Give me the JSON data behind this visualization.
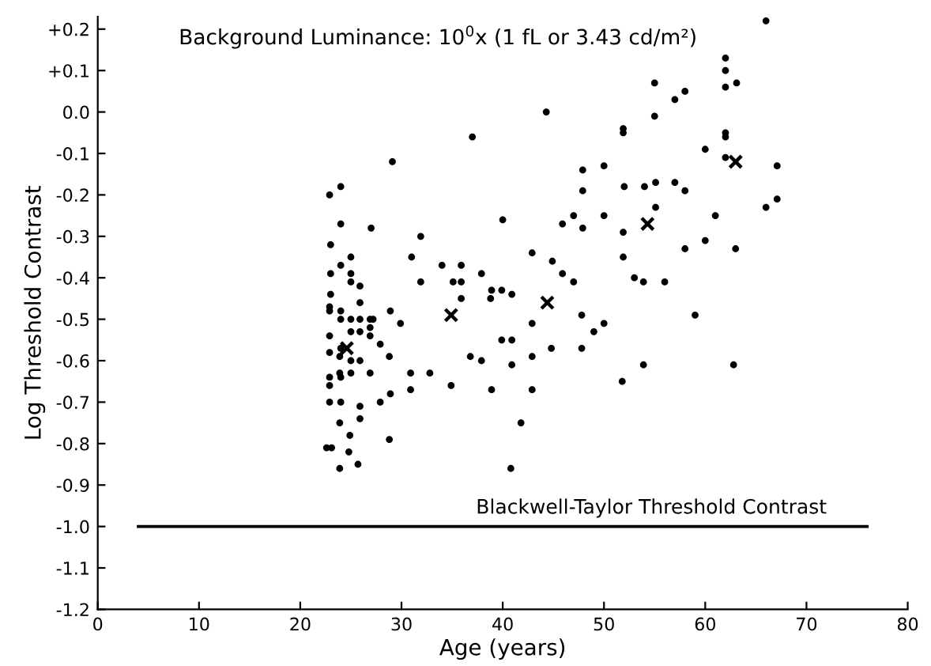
{
  "chart_data": {
    "type": "scatter",
    "title": "Background Luminance: 10$^{0}$x (1 fL or 3.43 cd/m²)",
    "xlabel": "Age (years)",
    "ylabel": "Log Threshold Contrast",
    "xlim": [
      0,
      80
    ],
    "xticks": [
      0,
      10,
      20,
      30,
      40,
      50,
      60,
      70,
      80
    ],
    "ylim": [
      -1.2,
      0.23
    ],
    "yticks": [
      {
        "value": 0.2,
        "label": "+0.2"
      },
      {
        "value": 0.1,
        "label": "+0.1"
      },
      {
        "value": 0.0,
        "label": "0.0"
      },
      {
        "value": -0.1,
        "label": "-0.1"
      },
      {
        "value": -0.2,
        "label": "-0.2"
      },
      {
        "value": -0.3,
        "label": "-0.3"
      },
      {
        "value": -0.4,
        "label": "-0.4"
      },
      {
        "value": -0.5,
        "label": "-0.5"
      },
      {
        "value": -0.6,
        "label": "-0.6"
      },
      {
        "value": -0.7,
        "label": "-0.7"
      },
      {
        "value": -0.8,
        "label": "-0.8"
      },
      {
        "value": -0.9,
        "label": "-0.9"
      },
      {
        "value": -1.0,
        "label": "-1.0"
      },
      {
        "value": -1.1,
        "label": "-1.1"
      },
      {
        "value": -1.2,
        "label": "-1.2"
      }
    ],
    "grid": false,
    "legend": false,
    "ref_lines": [
      {
        "axis": "y",
        "value": -1.0,
        "label": "Blackwell-Taylor Threshold Contrast",
        "color": "#000000",
        "line_style": "solid"
      }
    ],
    "series": [
      {
        "color": "#000000",
        "marker": "circle",
        "x": [
          37.0,
          29.1,
          24.0,
          22.9,
          24.0,
          27.0,
          31.9,
          23.0,
          31.0,
          25.0,
          24.0,
          34.0,
          35.9,
          23.0,
          25.0,
          37.9,
          25.0,
          31.9,
          35.1,
          35.9,
          25.9,
          23.0,
          38.9,
          38.8,
          35.9,
          22.9,
          22.9,
          24.0,
          25.9,
          28.9,
          25.0,
          24.0,
          25.9,
          26.9,
          27.2,
          29.9,
          26.9,
          22.9,
          25.0,
          25.9,
          26.9,
          27.9,
          22.9,
          24.0,
          25.0,
          23.9,
          25.9,
          28.8,
          36.8,
          37.9,
          22.9,
          22.9,
          23.9,
          24.0,
          25.0,
          26.9,
          30.9,
          32.8,
          30.9,
          34.9,
          38.9,
          28.9,
          22.9,
          24.0,
          25.9,
          27.9,
          23.9,
          25.9,
          24.9,
          28.8,
          22.6,
          23.1,
          24.8,
          23.9,
          25.7,
          39.9,
          40.9,
          40.0,
          42.9,
          44.9,
          45.9,
          47.0,
          39.9,
          40.9,
          42.9,
          40.9,
          42.9,
          44.8,
          47.8,
          49.0,
          50.0,
          47.8,
          42.9,
          41.8,
          40.8,
          47.9,
          50.0,
          47.9,
          47.0,
          45.9,
          47.9,
          50.0,
          51.9,
          51.9,
          52.0,
          54.0,
          55.1,
          55.1,
          51.9,
          51.9,
          53.0,
          53.9,
          51.8,
          53.9,
          44.3,
          66.0,
          62.0,
          62.0,
          55.0,
          62.0,
          63.1,
          57.0,
          58.0,
          55.0,
          62.0,
          62.0,
          60.0,
          62.0,
          67.1,
          57.0,
          58.0,
          66.0,
          67.1,
          61.0,
          58.0,
          60.0,
          63.0,
          56.0,
          59.0,
          62.8
        ],
        "values": [
          -0.06,
          -0.12,
          -0.18,
          -0.2,
          -0.27,
          -0.28,
          -0.3,
          -0.32,
          -0.35,
          -0.35,
          -0.37,
          -0.37,
          -0.37,
          -0.39,
          -0.39,
          -0.39,
          -0.41,
          -0.41,
          -0.41,
          -0.41,
          -0.42,
          -0.44,
          -0.43,
          -0.45,
          -0.45,
          -0.47,
          -0.48,
          -0.48,
          -0.46,
          -0.48,
          -0.5,
          -0.5,
          -0.5,
          -0.5,
          -0.5,
          -0.51,
          -0.52,
          -0.54,
          -0.53,
          -0.53,
          -0.54,
          -0.56,
          -0.58,
          -0.57,
          -0.6,
          -0.59,
          -0.6,
          -0.59,
          -0.59,
          -0.6,
          -0.64,
          -0.66,
          -0.63,
          -0.64,
          -0.63,
          -0.63,
          -0.63,
          -0.63,
          -0.67,
          -0.66,
          -0.67,
          -0.68,
          -0.7,
          -0.7,
          -0.71,
          -0.7,
          -0.75,
          -0.74,
          -0.78,
          -0.79,
          -0.81,
          -0.81,
          -0.82,
          -0.86,
          -0.85,
          -0.43,
          -0.44,
          -0.26,
          -0.34,
          -0.36,
          -0.39,
          -0.41,
          -0.55,
          -0.55,
          -0.51,
          -0.61,
          -0.59,
          -0.57,
          -0.49,
          -0.53,
          -0.51,
          -0.57,
          -0.67,
          -0.75,
          -0.86,
          -0.14,
          -0.13,
          -0.19,
          -0.25,
          -0.27,
          -0.28,
          -0.25,
          -0.04,
          -0.05,
          -0.18,
          -0.18,
          -0.17,
          -0.23,
          -0.29,
          -0.35,
          -0.4,
          -0.41,
          -0.65,
          -0.61,
          0.0,
          0.22,
          0.13,
          0.1,
          0.07,
          0.06,
          0.07,
          0.03,
          0.05,
          -0.01,
          -0.05,
          -0.06,
          -0.09,
          -0.11,
          -0.13,
          -0.17,
          -0.19,
          -0.23,
          -0.21,
          -0.25,
          -0.33,
          -0.31,
          -0.33,
          -0.41,
          -0.49,
          -0.61
        ]
      },
      {
        "color": "#000000",
        "marker": "cross",
        "x": [
          24.6,
          34.9,
          44.4,
          54.3,
          63.0
        ],
        "values": [
          -0.57,
          -0.49,
          -0.46,
          -0.27,
          -0.12
        ]
      }
    ]
  }
}
